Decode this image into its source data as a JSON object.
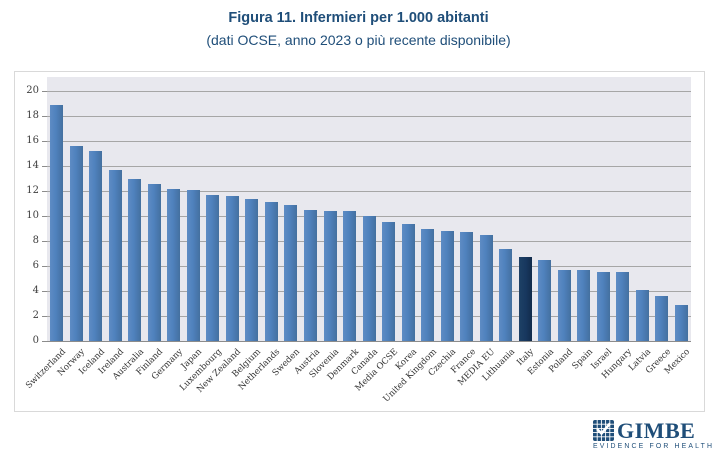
{
  "title": "Figura 11. Infermieri per 1.000 abitanti",
  "subtitle": "(dati OCSE, anno 2023 o più recente disponibile)",
  "chart_data": {
    "type": "bar",
    "categories": [
      "Switzerland",
      "Norway",
      "Iceland",
      "Ireland",
      "Australia",
      "Finland",
      "Germany",
      "Japan",
      "Luxembourg",
      "New Zealand",
      "Belgium",
      "Netherlands",
      "Sweden",
      "Austria",
      "Slovenia",
      "Denmark",
      "Canada",
      "Media OCSE",
      "Korea",
      "United Kingdom",
      "Czechia",
      "France",
      "MEDIA EU",
      "Lithuania",
      "Italy",
      "Estonia",
      "Poland",
      "Spain",
      "Israel",
      "Hungary",
      "Latvia",
      "Greece",
      "Mexico"
    ],
    "values": [
      18.9,
      15.6,
      15.2,
      13.7,
      13.0,
      12.6,
      12.2,
      12.1,
      11.7,
      11.6,
      11.4,
      11.1,
      10.9,
      10.5,
      10.4,
      10.4,
      10.0,
      9.5,
      9.4,
      9.0,
      8.8,
      8.7,
      8.5,
      7.4,
      6.7,
      6.5,
      5.7,
      5.7,
      5.5,
      5.5,
      4.1,
      3.6,
      2.9
    ],
    "highlight_category": "Italy",
    "title": "Figura 11. Infermieri per 1.000 abitanti",
    "subtitle": "(dati OCSE, anno 2023 o più recente disponibile)",
    "xlabel": "",
    "ylabel": "",
    "ylim": [
      0,
      20
    ],
    "ytick_step": 2,
    "grid": true,
    "legend": "none",
    "bar_color": "#4F81BD",
    "highlight_color": "#17375E",
    "plot_bg": "#E8E8EE",
    "title_color": "#1F4E79"
  },
  "branding": {
    "logo_text": "GIMBE",
    "tagline": "EVIDENCE FOR HEALTH",
    "color": "#1F4E79"
  }
}
